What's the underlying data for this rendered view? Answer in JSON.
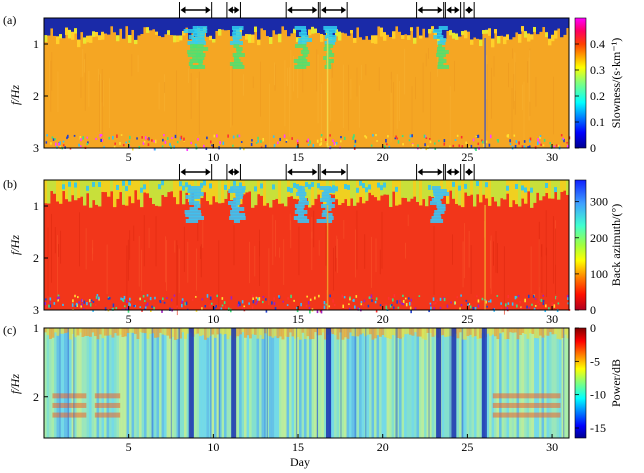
{
  "chart_data": [
    {
      "type": "heatmap",
      "panel_label": "(a)",
      "ylabel": "f/Hz",
      "x_ticks": [
        5,
        10,
        15,
        20,
        25,
        30
      ],
      "y_ticks": [
        1,
        2,
        3
      ],
      "xlim": [
        0,
        31
      ],
      "ylim": [
        3,
        0.5
      ],
      "colorbar": {
        "label": "Slowness/(s·km⁻¹)",
        "ticks": [
          0,
          0.1,
          0.2,
          0.3,
          0.4
        ],
        "range": [
          0,
          0.5
        ],
        "colormap": "jet-magenta"
      },
      "dominant_value": 0.32,
      "low_freq_band_value": 0.02,
      "event_days": [
        8.8,
        9.2,
        11.5,
        15.3,
        16.8,
        23.4
      ],
      "arrow_intervals": [
        [
          8.0,
          9.9
        ],
        [
          10.8,
          11.6
        ],
        [
          14.3,
          16.2
        ],
        [
          16.3,
          17.9
        ],
        [
          22.0,
          23.6
        ],
        [
          23.7,
          24.6
        ],
        [
          24.8,
          25.4
        ]
      ]
    },
    {
      "type": "heatmap",
      "panel_label": "(b)",
      "ylabel": "f/Hz",
      "x_ticks": [
        5,
        10,
        15,
        20,
        25,
        30
      ],
      "y_ticks": [
        1,
        2,
        3
      ],
      "xlim": [
        0,
        31
      ],
      "ylim": [
        3,
        0.5
      ],
      "colorbar": {
        "label": "Back azimuth/(°)",
        "ticks": [
          0,
          100,
          200,
          300
        ],
        "range": [
          0,
          360
        ],
        "colormap": "jet"
      },
      "dominant_value": 20,
      "event_value": 240,
      "arrow_intervals": [
        [
          8.0,
          9.9
        ],
        [
          10.8,
          11.6
        ],
        [
          14.3,
          16.2
        ],
        [
          16.3,
          17.9
        ],
        [
          22.0,
          23.6
        ],
        [
          23.7,
          24.6
        ],
        [
          24.8,
          25.4
        ]
      ]
    },
    {
      "type": "heatmap",
      "panel_label": "(c)",
      "ylabel": "f/Hz",
      "xlabel": "Day",
      "x_ticks": [
        5,
        10,
        15,
        20,
        25,
        30
      ],
      "y_ticks": [
        1,
        2
      ],
      "xlim": [
        0,
        31
      ],
      "ylim": [
        2.6,
        1
      ],
      "colorbar": {
        "label": "Power/dB",
        "ticks": [
          0,
          -5,
          -10,
          -15
        ],
        "range": [
          -16.5,
          0
        ],
        "colormap": "jet"
      },
      "low_power_days": [
        8.7,
        11.2,
        16.8,
        23.3,
        24.2,
        26.0
      ]
    }
  ]
}
